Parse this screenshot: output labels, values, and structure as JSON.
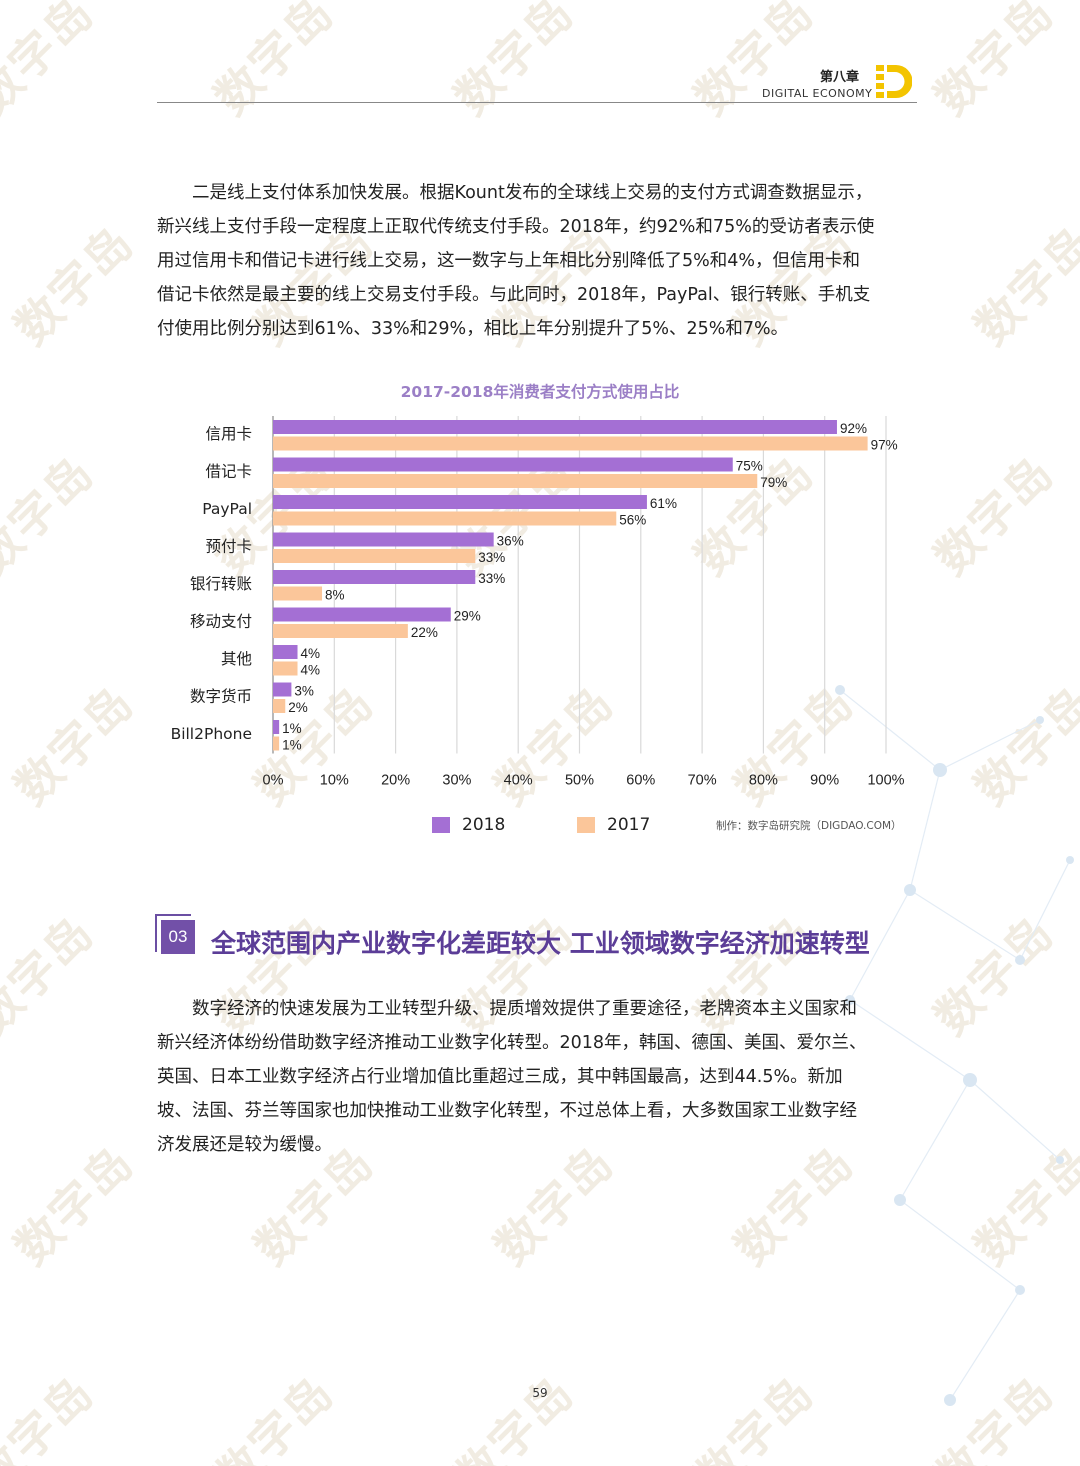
{
  "header": {
    "chapter": "第八章",
    "subtitle": "DIGITAL  ECONOMY"
  },
  "paragraph1": {
    "lines": [
      "　　二是线上支付体系加快发展。根据Kount发布的全球线上交易的支付方式调查数据显示，",
      "新兴线上支付手段一定程度上正取代传统支付手段。2018年，约92%和75%的受访者表示使",
      "用过信用卡和借记卡进行线上交易，这一数字与上年相比分别降低了5%和4%，但信用卡和",
      "借记卡依然是最主要的线上交易支付手段。与此同时，2018年，PayPal、银行转账、手机支",
      "付使用比例分别达到61%、33%和29%，相比上年分别提升了5%、25%和7%。"
    ]
  },
  "chart_data": {
    "type": "bar",
    "orientation": "horizontal",
    "title": "2017-2018年消费者支付方式使用占比",
    "categories": [
      "信用卡",
      "借记卡",
      "PayPal",
      "预付卡",
      "银行转账",
      "移动支付",
      "其他",
      "数字货币",
      "Bill2Phone"
    ],
    "series": [
      {
        "name": "2018",
        "color": "#a46fd4",
        "values": [
          92,
          75,
          61,
          36,
          33,
          29,
          4,
          3,
          1
        ]
      },
      {
        "name": "2017",
        "color": "#fbc69a",
        "values": [
          97,
          79,
          56,
          33,
          8,
          22,
          4,
          2,
          1
        ]
      }
    ],
    "value_suffix": "%",
    "xlim": [
      0,
      100
    ],
    "xticks": [
      "0%",
      "10%",
      "20%",
      "30%",
      "40%",
      "50%",
      "60%",
      "70%",
      "80%",
      "90%",
      "100%"
    ],
    "grid": true,
    "legend_position": "bottom",
    "credit": "制作：数字岛研究院（DIGDAO.COM）"
  },
  "section": {
    "number": "03",
    "title": "全球范围内产业数字化差距较大  工业领域数字经济加速转型"
  },
  "paragraph2": {
    "lines": [
      "　　数字经济的快速发展为工业转型升级、提质增效提供了重要途径，老牌资本主义国家和",
      "新兴经济体纷纷借助数字经济推动工业数字化转型。2018年，韩国、德国、美国、爱尔兰、",
      "英国、日本工业数字经济占行业增加值比重超过三成，其中韩国最高，达到44.5%。新加",
      "坡、法国、芬兰等国家也加快推动工业数字化转型，不过总体上看，大多数国家工业数字经",
      "济发展还是较为缓慢。"
    ]
  },
  "page_number": "59",
  "watermark": "数字岛",
  "colors": {
    "accent_purple": "#5b3d97",
    "logo_yellow": "#f3c400",
    "grid": "#d9d9d9"
  }
}
